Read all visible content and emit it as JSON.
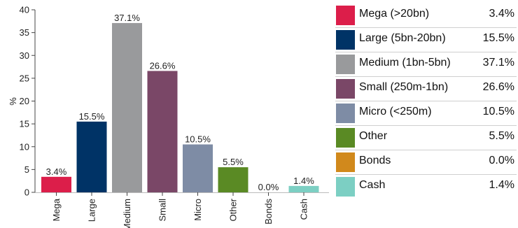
{
  "chart_data": {
    "type": "bar",
    "ylabel": "%",
    "ylim": [
      0,
      40
    ],
    "yticks": [
      "0",
      "5",
      "10",
      "15",
      "20",
      "25",
      "30",
      "35",
      "40"
    ],
    "categories": [
      "Mega",
      "Large",
      "Medium",
      "Small",
      "Micro",
      "Other",
      "Bonds",
      "Cash"
    ],
    "values": [
      3.4,
      15.5,
      37.1,
      26.6,
      10.5,
      5.5,
      0.0,
      1.4
    ],
    "value_labels": [
      "3.4%",
      "15.5%",
      "37.1%",
      "26.6%",
      "10.5%",
      "5.5%",
      "0.0%",
      "1.4%"
    ],
    "colors": [
      "#dc1e4a",
      "#003366",
      "#999a9c",
      "#7a4767",
      "#7e8ca5",
      "#5a8a24",
      "#d1891c",
      "#7ccfc3"
    ],
    "grid": false,
    "legend_position": "right"
  },
  "legend": [
    {
      "label": "Mega (>20bn)",
      "value": "3.4%",
      "color": "#dc1e4a"
    },
    {
      "label": "Large (5bn-20bn)",
      "value": "15.5%",
      "color": "#003366"
    },
    {
      "label": "Medium (1bn-5bn)",
      "value": "37.1%",
      "color": "#999a9c"
    },
    {
      "label": "Small (250m-1bn)",
      "value": "26.6%",
      "color": "#7a4767"
    },
    {
      "label": "Micro (<250m)",
      "value": "10.5%",
      "color": "#7e8ca5"
    },
    {
      "label": "Other",
      "value": "5.5%",
      "color": "#5a8a24"
    },
    {
      "label": "Bonds",
      "value": "0.0%",
      "color": "#d1891c"
    },
    {
      "label": "Cash",
      "value": "1.4%",
      "color": "#7ccfc3"
    }
  ]
}
